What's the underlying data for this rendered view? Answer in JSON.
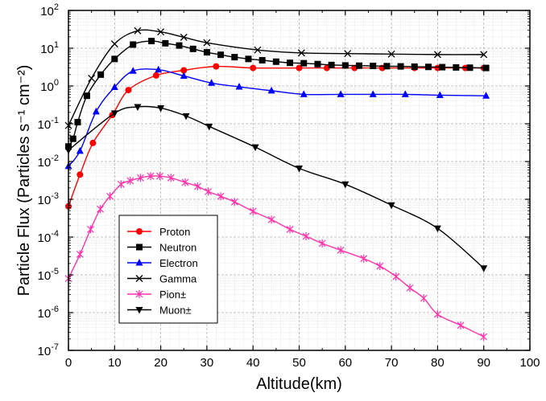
{
  "chart_data": {
    "type": "line",
    "xlabel": "Altitude(km)",
    "ylabel": "Particle Flux (Particles s⁻¹ cm⁻²)",
    "xlim": [
      0,
      100
    ],
    "ylim_exponent": [
      -7,
      2
    ],
    "yscale": "log",
    "grid": true,
    "legend_position": "lower-left",
    "x_ticks": [
      "0",
      "10",
      "20",
      "30",
      "40",
      "50",
      "60",
      "70",
      "80",
      "90",
      "100"
    ],
    "y_tick_mantissa": "10",
    "y_tick_exponents": [
      "-7",
      "-6",
      "-5",
      "-4",
      "-3",
      "-2",
      "-1",
      "0",
      "1",
      "2"
    ],
    "series": [
      {
        "name": "Proton",
        "color": "#ff0000",
        "marker": "circle",
        "x": [
          0,
          2.5,
          5.3,
          9.5,
          13,
          19,
          25,
          32,
          40,
          50,
          56,
          62,
          68,
          75,
          80,
          86,
          90
        ],
        "y": [
          0.00065,
          0.0045,
          0.031,
          0.17,
          0.78,
          1.9,
          2.6,
          3.3,
          3.0,
          3.0,
          3.0,
          3.0,
          3.0,
          3.0,
          3.0,
          3.0,
          3.0
        ]
      },
      {
        "name": "Neutron",
        "color": "#000000",
        "marker": "square",
        "x": [
          0,
          1,
          2,
          4,
          7,
          10,
          14,
          18,
          21,
          24,
          27,
          30,
          33,
          36,
          39,
          42,
          45,
          48,
          51,
          54,
          57,
          60,
          63,
          66,
          69,
          72,
          75,
          78,
          81,
          84,
          87,
          90.5
        ],
        "y": [
          0.025,
          0.04,
          0.11,
          0.55,
          2.0,
          5.2,
          12.5,
          15.5,
          13.5,
          11.8,
          9.6,
          7.8,
          6.7,
          5.8,
          5.2,
          4.8,
          4.4,
          4.1,
          4.0,
          3.8,
          3.6,
          3.5,
          3.45,
          3.4,
          3.35,
          3.3,
          3.25,
          3.2,
          3.15,
          3.1,
          3.05,
          3.0
        ]
      },
      {
        "name": "Electron",
        "color": "#0000ff",
        "marker": "triangle-up",
        "x": [
          0,
          2.5,
          6,
          10,
          14,
          19.5,
          25,
          31,
          37,
          44,
          51,
          59,
          66,
          73,
          80.5,
          90.5
        ],
        "y": [
          0.0075,
          0.019,
          0.21,
          0.93,
          2.5,
          2.7,
          1.85,
          1.2,
          0.95,
          0.75,
          0.6,
          0.6,
          0.6,
          0.6,
          0.57,
          0.55
        ]
      },
      {
        "name": "Gamma",
        "color": "#000000",
        "marker": "x",
        "x": [
          0,
          5,
          10,
          15,
          20,
          25,
          30,
          41,
          50.5,
          60.5,
          70,
          80,
          90
        ],
        "y": [
          0.09,
          1.6,
          13,
          29,
          27,
          19.5,
          14,
          9,
          7.5,
          7.2,
          7.0,
          6.8,
          6.8
        ]
      },
      {
        "name": "Pion±",
        "color": "#ff33aa",
        "marker": "asterisk",
        "x": [
          0,
          2.5,
          4.8,
          6.9,
          9,
          11.4,
          13.4,
          15.6,
          17.8,
          19.8,
          22.2,
          25.3,
          28,
          30.3,
          33,
          36,
          40,
          44,
          48,
          51.5,
          55,
          59,
          64,
          67.5,
          71,
          74,
          77,
          80,
          85,
          90
        ],
        "y": [
          8e-06,
          3.5e-05,
          0.00016,
          0.00055,
          0.0012,
          0.0025,
          0.0031,
          0.0037,
          0.0041,
          0.0041,
          0.0037,
          0.0028,
          0.0022,
          0.0016,
          0.0012,
          0.00085,
          0.00048,
          0.00029,
          0.00016,
          0.000105,
          6.8e-05,
          4.5e-05,
          2.7e-05,
          1.7e-05,
          9e-06,
          4.5e-06,
          2.4e-06,
          9e-07,
          4.6e-07,
          2.3e-07
        ]
      },
      {
        "name": "Muon±",
        "color": "#000000",
        "marker": "triangle-down",
        "x": [
          0,
          10,
          15,
          20,
          25.5,
          30.5,
          40.5,
          50,
          60,
          70,
          80,
          90
        ],
        "y": [
          0.02,
          0.19,
          0.28,
          0.26,
          0.16,
          0.085,
          0.024,
          0.0066,
          0.0025,
          0.0007,
          0.00017,
          1.5e-05
        ]
      }
    ]
  }
}
